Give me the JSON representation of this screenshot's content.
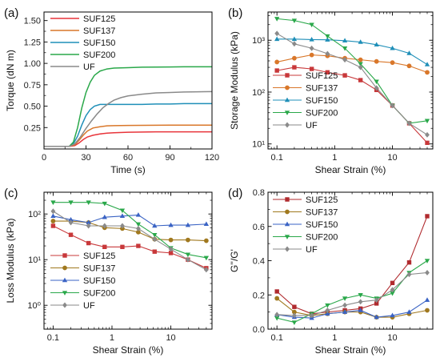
{
  "chart_data": [
    {
      "id": "a",
      "type": "line",
      "panel_label": "(a)",
      "xlabel": "Time (s)",
      "ylabel": "Torque (dN m)",
      "xlim": [
        0,
        120
      ],
      "ylim": [
        0,
        1.6
      ],
      "xscale": "linear",
      "yscale": "linear",
      "xticks": [
        0,
        30,
        60,
        90,
        120
      ],
      "xtick_labels": [
        "0",
        "30",
        "60",
        "90",
        "120"
      ],
      "yticks": [
        0.25,
        0.5,
        0.75,
        1.0,
        1.25,
        1.5
      ],
      "ytick_labels": [
        "0.25",
        "0.50",
        "0.75",
        "1.00",
        "1.25",
        "1.50"
      ],
      "legend_position": "top-left",
      "markers": false,
      "series": [
        {
          "name": "SUF125",
          "color": "#e8343a",
          "x": [
            0,
            18,
            22,
            25,
            28,
            31,
            35,
            40,
            45,
            50,
            60,
            70,
            80,
            90,
            100,
            110,
            120
          ],
          "y": [
            0.03,
            0.03,
            0.04,
            0.07,
            0.11,
            0.14,
            0.16,
            0.175,
            0.185,
            0.19,
            0.195,
            0.198,
            0.2,
            0.2,
            0.2,
            0.2,
            0.2
          ]
        },
        {
          "name": "SUF137",
          "color": "#d9772a",
          "x": [
            0,
            18,
            22,
            25,
            28,
            31,
            35,
            40,
            45,
            50,
            60,
            70,
            80,
            90,
            100,
            110,
            120
          ],
          "y": [
            0.03,
            0.03,
            0.05,
            0.1,
            0.16,
            0.21,
            0.245,
            0.26,
            0.27,
            0.272,
            0.275,
            0.276,
            0.277,
            0.278,
            0.278,
            0.278,
            0.278
          ]
        },
        {
          "name": "SUF150",
          "color": "#1f8fb8",
          "x": [
            0,
            18,
            21,
            24,
            27,
            30,
            33,
            36,
            40,
            45,
            50,
            60,
            70,
            80,
            90,
            100,
            110,
            120
          ],
          "y": [
            0.03,
            0.03,
            0.06,
            0.15,
            0.28,
            0.39,
            0.46,
            0.5,
            0.52,
            0.52,
            0.52,
            0.52,
            0.52,
            0.525,
            0.525,
            0.53,
            0.53,
            0.53
          ]
        },
        {
          "name": "SUF200",
          "color": "#2aa84a",
          "x": [
            0,
            18,
            21,
            24,
            27,
            30,
            33,
            36,
            40,
            45,
            50,
            60,
            70,
            80,
            90,
            100,
            110,
            120
          ],
          "y": [
            0.03,
            0.03,
            0.08,
            0.25,
            0.48,
            0.66,
            0.78,
            0.86,
            0.91,
            0.935,
            0.945,
            0.95,
            0.955,
            0.957,
            0.958,
            0.96,
            0.96,
            0.96
          ]
        },
        {
          "name": "UF",
          "color": "#8a8a8a",
          "x": [
            0,
            18,
            22,
            26,
            30,
            34,
            38,
            42,
            46,
            50,
            55,
            60,
            70,
            80,
            90,
            100,
            110,
            120
          ],
          "y": [
            0.03,
            0.03,
            0.06,
            0.14,
            0.24,
            0.33,
            0.41,
            0.48,
            0.53,
            0.57,
            0.6,
            0.62,
            0.64,
            0.655,
            0.66,
            0.665,
            0.668,
            0.67
          ]
        }
      ]
    },
    {
      "id": "b",
      "type": "line",
      "panel_label": "(b)",
      "xlabel": "Shear Strain (%)",
      "ylabel": "Storage Modulus (kPa)",
      "xlim": [
        0.07,
        50
      ],
      "ylim": [
        8,
        3500
      ],
      "xscale": "log",
      "yscale": "log",
      "xticks": [
        0.1,
        1,
        10
      ],
      "xtick_labels": [
        "0.1",
        "1",
        "10"
      ],
      "yticks": [
        10,
        100,
        1000
      ],
      "ytick_labels": [
        "10¹",
        "10²",
        "10³"
      ],
      "legend_position": "bottom-left",
      "markers": true,
      "x": [
        0.1,
        0.2,
        0.4,
        0.75,
        1.5,
        2.8,
        5.3,
        10,
        19.5,
        40
      ],
      "series": [
        {
          "name": "SUF125",
          "color": "#c8383a",
          "marker": "square",
          "y": [
            260,
            300,
            280,
            240,
            210,
            170,
            110,
            55,
            25,
            10.5
          ]
        },
        {
          "name": "SUF137",
          "color": "#d9772a",
          "marker": "circle",
          "y": [
            380,
            450,
            520,
            500,
            450,
            420,
            390,
            370,
            320,
            240
          ]
        },
        {
          "name": "SUF150",
          "color": "#1f8fb8",
          "marker": "triangle-up",
          "y": [
            1050,
            1050,
            1030,
            1020,
            980,
            920,
            820,
            700,
            560,
            340
          ]
        },
        {
          "name": "SUF200",
          "color": "#2aa84a",
          "marker": "triangle-down",
          "y": [
            2600,
            2400,
            2000,
            1200,
            700,
            350,
            160,
            55,
            25,
            28
          ]
        },
        {
          "name": "UF",
          "color": "#8a8a8a",
          "marker": "diamond",
          "y": [
            1350,
            850,
            700,
            550,
            420,
            300,
            120,
            55,
            25,
            15
          ]
        }
      ]
    },
    {
      "id": "c",
      "type": "line",
      "panel_label": "(c)",
      "xlabel": "Shear Strain (%)",
      "ylabel": "Loss Modulus (kPa)",
      "xlim": [
        0.07,
        50
      ],
      "ylim": [
        0.3,
        300
      ],
      "xscale": "log",
      "yscale": "log",
      "xticks": [
        0.1,
        1,
        10
      ],
      "xtick_labels": [
        "0.1",
        "1",
        "10"
      ],
      "yticks": [
        1,
        10,
        100
      ],
      "ytick_labels": [
        "10⁰",
        "10¹",
        "10²"
      ],
      "legend_position": "bottom-left",
      "markers": true,
      "x": [
        0.1,
        0.2,
        0.4,
        0.75,
        1.5,
        2.8,
        5.3,
        10,
        19.5,
        40
      ],
      "series": [
        {
          "name": "SUF125",
          "color": "#c8383a",
          "marker": "square",
          "y": [
            55,
            35,
            23,
            19,
            19,
            20,
            15,
            14,
            10,
            6.5
          ]
        },
        {
          "name": "SUF137",
          "color": "#a0781e",
          "marker": "circle",
          "y": [
            70,
            70,
            65,
            50,
            48,
            40,
            28,
            27,
            27,
            26
          ]
        },
        {
          "name": "SUF150",
          "color": "#3a63c4",
          "marker": "triangle-up",
          "y": [
            90,
            75,
            65,
            85,
            90,
            95,
            55,
            57,
            57,
            60
          ]
        },
        {
          "name": "SUF200",
          "color": "#2aa84a",
          "marker": "triangle-down",
          "y": [
            180,
            180,
            180,
            170,
            120,
            60,
            35,
            18,
            13,
            11
          ]
        },
        {
          "name": "UF",
          "color": "#8a8a8a",
          "marker": "diamond",
          "y": [
            115,
            65,
            55,
            55,
            55,
            48,
            28,
            17,
            10,
            6
          ]
        }
      ]
    },
    {
      "id": "d",
      "type": "line",
      "panel_label": "(d)",
      "xlabel": "Shear Strain (%)",
      "ylabel": "G''/G'",
      "xlim": [
        0.07,
        50
      ],
      "ylim": [
        0,
        0.8
      ],
      "xscale": "log",
      "yscale": "linear",
      "xticks": [
        0.1,
        1,
        10
      ],
      "xtick_labels": [
        "0.1",
        "1",
        "10"
      ],
      "yticks": [
        0,
        0.2,
        0.4,
        0.6,
        0.8
      ],
      "ytick_labels": [
        "0.0",
        "0.2",
        "0.4",
        "0.6",
        "0.8"
      ],
      "legend_position": "top-left",
      "markers": true,
      "x": [
        0.1,
        0.2,
        0.4,
        0.75,
        1.5,
        2.8,
        5.3,
        10,
        19.5,
        40
      ],
      "series": [
        {
          "name": "SUF125",
          "color": "#b02a2e",
          "marker": "square",
          "y": [
            0.22,
            0.13,
            0.09,
            0.1,
            0.11,
            0.12,
            0.15,
            0.27,
            0.39,
            0.66
          ]
        },
        {
          "name": "SUF137",
          "color": "#a0781e",
          "marker": "circle",
          "y": [
            0.18,
            0.1,
            0.08,
            0.09,
            0.1,
            0.1,
            0.07,
            0.07,
            0.09,
            0.11
          ]
        },
        {
          "name": "SUF150",
          "color": "#3a63c4",
          "marker": "triangle-up",
          "y": [
            0.085,
            0.07,
            0.065,
            0.09,
            0.1,
            0.11,
            0.07,
            0.08,
            0.1,
            0.17
          ]
        },
        {
          "name": "SUF200",
          "color": "#2aa84a",
          "marker": "triangle-down",
          "y": [
            0.065,
            0.04,
            0.09,
            0.14,
            0.18,
            0.2,
            0.18,
            0.21,
            0.33,
            0.4
          ]
        },
        {
          "name": "UF",
          "color": "#8a8a8a",
          "marker": "diamond",
          "y": [
            0.085,
            0.08,
            0.08,
            0.11,
            0.14,
            0.16,
            0.17,
            0.23,
            0.32,
            0.33
          ]
        }
      ]
    }
  ]
}
